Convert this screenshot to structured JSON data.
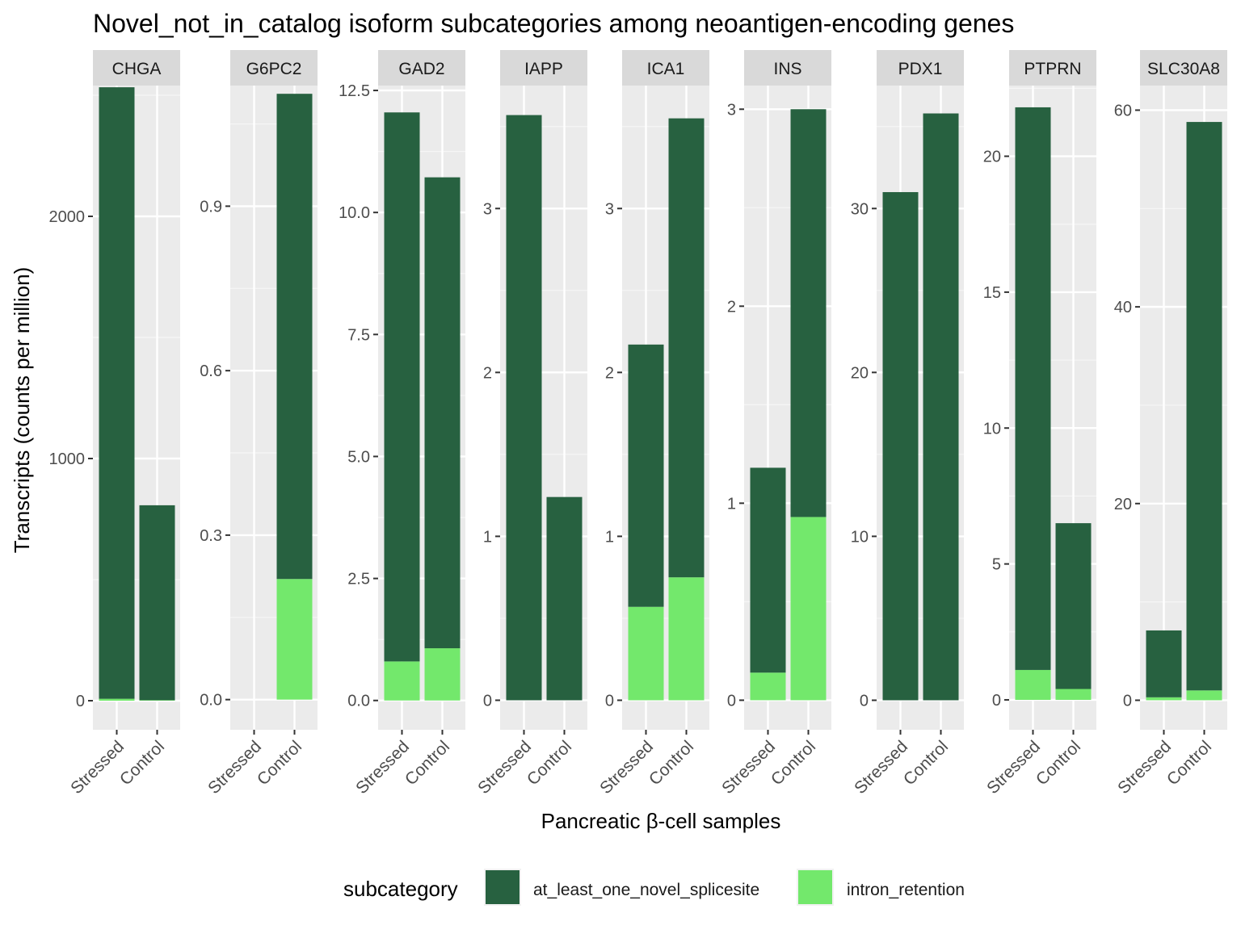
{
  "chart_data": {
    "type": "bar",
    "stacked": true,
    "faceted": true,
    "title": "Novel_not_in_catalog isoform subcategories among neoantigen-encoding genes",
    "xlabel": "Pancreatic β-cell samples",
    "ylabel": "Transcripts (counts per million)",
    "categories": [
      "Stressed",
      "Control"
    ],
    "legend": {
      "title": "subcategory",
      "position": "bottom",
      "items": [
        {
          "name": "at_least_one_novel_splicesite",
          "color": "#276140"
        },
        {
          "name": "intron_retention",
          "color": "#73E86C"
        }
      ]
    },
    "grid": true,
    "facets": [
      {
        "name": "CHGA",
        "ylim": [
          -120,
          2540
        ],
        "ticks": [
          0,
          1000,
          2000
        ],
        "tick_labels": [
          "0",
          "1000",
          "2000"
        ],
        "series": [
          {
            "name": "at_least_one_novel_splicesite",
            "values": [
              2525,
              805
            ]
          },
          {
            "name": "intron_retention",
            "values": [
              8,
              2
            ]
          }
        ]
      },
      {
        "name": "G6PC2",
        "ylim": [
          -0.055,
          1.12
        ],
        "ticks": [
          0,
          0.3,
          0.6,
          0.9
        ],
        "tick_labels": [
          "0.0",
          "0.3",
          "0.6",
          "0.9"
        ],
        "series": [
          {
            "name": "at_least_one_novel_splicesite",
            "values": [
              0,
              0.885
            ]
          },
          {
            "name": "intron_retention",
            "values": [
              0,
              0.22
            ]
          }
        ]
      },
      {
        "name": "GAD2",
        "ylim": [
          -0.6,
          12.6
        ],
        "ticks": [
          0,
          2.5,
          5,
          7.5,
          10,
          12.5
        ],
        "tick_labels": [
          "0.0",
          "2.5",
          "5.0",
          "7.5",
          "10.0",
          "12.5"
        ],
        "series": [
          {
            "name": "at_least_one_novel_splicesite",
            "values": [
              11.25,
              9.65
            ]
          },
          {
            "name": "intron_retention",
            "values": [
              0.8,
              1.07
            ]
          }
        ]
      },
      {
        "name": "IAPP",
        "ylim": [
          -0.18,
          3.75
        ],
        "ticks": [
          0,
          1,
          2,
          3
        ],
        "tick_labels": [
          "0",
          "1",
          "2",
          "3"
        ],
        "series": [
          {
            "name": "at_least_one_novel_splicesite",
            "values": [
              3.57,
              1.24
            ]
          },
          {
            "name": "intron_retention",
            "values": [
              0,
              0
            ]
          }
        ]
      },
      {
        "name": "ICA1",
        "ylim": [
          -0.18,
          3.75
        ],
        "ticks": [
          0,
          1,
          2,
          3
        ],
        "tick_labels": [
          "0",
          "1",
          "2",
          "3"
        ],
        "series": [
          {
            "name": "at_least_one_novel_splicesite",
            "values": [
              1.6,
              2.8
            ]
          },
          {
            "name": "intron_retention",
            "values": [
              0.57,
              0.75
            ]
          }
        ]
      },
      {
        "name": "INS",
        "ylim": [
          -0.15,
          3.12
        ],
        "ticks": [
          0,
          1,
          2,
          3
        ],
        "tick_labels": [
          "0",
          "1",
          "2",
          "3"
        ],
        "series": [
          {
            "name": "at_least_one_novel_splicesite",
            "values": [
              1.04,
              2.07
            ]
          },
          {
            "name": "intron_retention",
            "values": [
              0.14,
              0.93
            ]
          }
        ]
      },
      {
        "name": "PDX1",
        "ylim": [
          -1.8,
          37.5
        ],
        "ticks": [
          0,
          10,
          20,
          30
        ],
        "tick_labels": [
          "0",
          "10",
          "20",
          "30"
        ],
        "series": [
          {
            "name": "at_least_one_novel_splicesite",
            "values": [
              31,
              35.8
            ]
          },
          {
            "name": "intron_retention",
            "values": [
              0,
              0
            ]
          }
        ]
      },
      {
        "name": "PTPRN",
        "ylim": [
          -1.1,
          22.6
        ],
        "ticks": [
          0,
          5,
          10,
          15,
          20
        ],
        "tick_labels": [
          "0",
          "5",
          "10",
          "15",
          "20"
        ],
        "series": [
          {
            "name": "at_least_one_novel_splicesite",
            "values": [
              20.7,
              6.1
            ]
          },
          {
            "name": "intron_retention",
            "values": [
              1.1,
              0.4
            ]
          }
        ]
      },
      {
        "name": "SLC30A8",
        "ylim": [
          -3.0,
          62.5
        ],
        "ticks": [
          0,
          20,
          40,
          60
        ],
        "tick_labels": [
          "0",
          "20",
          "40",
          "60"
        ],
        "series": [
          {
            "name": "at_least_one_novel_splicesite",
            "values": [
              6.8,
              57.8
            ]
          },
          {
            "name": "intron_retention",
            "values": [
              0.3,
              1.0
            ]
          }
        ]
      }
    ]
  }
}
